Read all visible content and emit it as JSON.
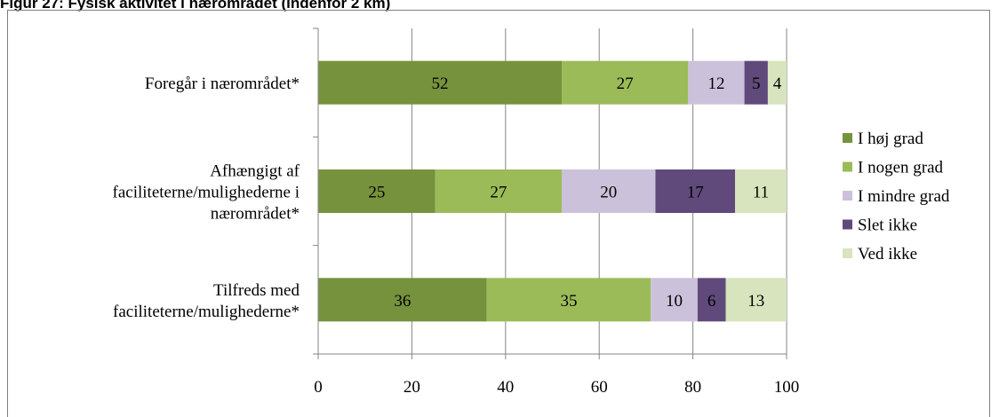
{
  "figure_title": "Figur 27: Fysisk aktivitet i nærområdet (indenfor 2 km)",
  "chart_data": {
    "type": "bar",
    "orientation": "horizontal",
    "stacked": true,
    "categories": [
      [
        "Foregår i nærområdet*"
      ],
      [
        "Afhængigt af",
        "faciliteterne/mulighederne i",
        "nærområdet*"
      ],
      [
        "Tilfreds med",
        "faciliteterne/mulighederne*"
      ]
    ],
    "series": [
      {
        "name": "I høj grad",
        "color": "#76923c",
        "values": [
          52,
          25,
          36
        ]
      },
      {
        "name": "I nogen grad",
        "color": "#9bbb59",
        "values": [
          27,
          27,
          35
        ]
      },
      {
        "name": "I mindre grad",
        "color": "#ccc1da",
        "values": [
          12,
          20,
          10
        ]
      },
      {
        "name": "Slet ikke",
        "color": "#604a7b",
        "values": [
          5,
          17,
          6
        ]
      },
      {
        "name": "Ved ikke",
        "color": "#d7e4bd",
        "values": [
          4,
          11,
          13
        ]
      }
    ],
    "xlim": [
      0,
      100
    ],
    "xticks": [
      0,
      20,
      40,
      60,
      80,
      100
    ],
    "grid": true,
    "legend": "right"
  }
}
